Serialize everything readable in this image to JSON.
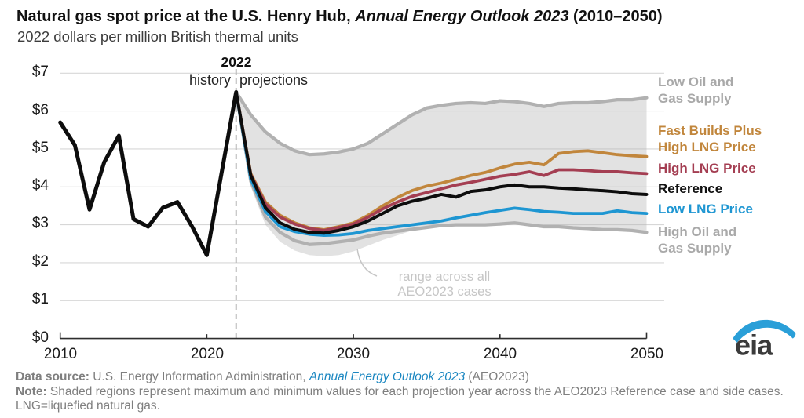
{
  "header": {
    "title_prefix": "Natural gas spot price at the U.S. Henry Hub, ",
    "title_italic": "Annual Energy Outlook 2023",
    "title_suffix": " (2010–2050)",
    "subtitle": "2022 dollars per million British thermal units"
  },
  "chart_data": {
    "type": "line",
    "title": "Natural gas spot price at the U.S. Henry Hub, Annual Energy Outlook 2023 (2010–2050)",
    "units": "2022 dollars per million British thermal units",
    "xlim": [
      2010,
      2050
    ],
    "ylim": [
      0,
      7
    ],
    "grid": "horizontal",
    "legend_position": "right",
    "x_tick_display": [
      "2010",
      "2020",
      "2030",
      "2040",
      "2050"
    ],
    "y_tick_labels": [
      "$0",
      "$1",
      "$2",
      "$3",
      "$4",
      "$5",
      "$6",
      "$7"
    ],
    "divider": {
      "year": 2022,
      "label": "2022",
      "left": "history",
      "right": "projections"
    },
    "callout": "range across all\nAEO2023 cases",
    "history": {
      "name": "history",
      "color": "#0d0d0d",
      "width": 5,
      "start_year": 2010,
      "values": [
        5.7,
        5.1,
        3.4,
        4.65,
        5.35,
        3.15,
        2.95,
        3.45,
        3.6,
        2.95,
        2.2,
        4.35,
        6.5
      ]
    },
    "band": {
      "name": "range across all AEO2023 cases",
      "fill": "#b4b4b4",
      "opacity": 0.38,
      "start_year": 2022,
      "upper": [
        6.5,
        5.9,
        5.45,
        5.15,
        4.95,
        4.85,
        4.87,
        4.92,
        5.0,
        5.15,
        5.4,
        5.65,
        5.9,
        6.08,
        6.15,
        6.2,
        6.22,
        6.2,
        6.27,
        6.25,
        6.2,
        6.12,
        6.2,
        6.22,
        6.22,
        6.25,
        6.3,
        6.3,
        6.35
      ],
      "lower": [
        6.5,
        4.0,
        3.0,
        2.55,
        2.32,
        2.2,
        2.17,
        2.2,
        2.3,
        2.45,
        2.6,
        2.72,
        2.85,
        2.93,
        2.98,
        3.0,
        3.0,
        3.0,
        3.02,
        3.05,
        3.0,
        2.95,
        2.95,
        2.92,
        2.9,
        2.87,
        2.87,
        2.85,
        2.8
      ]
    },
    "series": [
      {
        "name": "Low Oil and Gas Supply",
        "color": "#b1b1b1",
        "width": 4.2,
        "start_year": 2022,
        "values": [
          6.5,
          5.9,
          5.45,
          5.15,
          4.95,
          4.85,
          4.87,
          4.92,
          5.0,
          5.15,
          5.4,
          5.65,
          5.9,
          6.08,
          6.15,
          6.2,
          6.22,
          6.2,
          6.27,
          6.25,
          6.2,
          6.12,
          6.2,
          6.22,
          6.22,
          6.25,
          6.3,
          6.3,
          6.35
        ]
      },
      {
        "name": "High Oil and Gas Supply",
        "color": "#b1b1b1",
        "width": 4.2,
        "start_year": 2022,
        "values": [
          6.5,
          4.15,
          3.2,
          2.8,
          2.58,
          2.48,
          2.5,
          2.55,
          2.6,
          2.7,
          2.78,
          2.83,
          2.88,
          2.93,
          2.98,
          3.0,
          3.0,
          3.0,
          3.02,
          3.05,
          3.0,
          2.95,
          2.95,
          2.92,
          2.9,
          2.87,
          2.87,
          2.85,
          2.8
        ]
      },
      {
        "name": "Fast Builds Plus High LNG Price",
        "color": "#c1863c",
        "width": 3.8,
        "start_year": 2022,
        "values": [
          6.5,
          4.35,
          3.6,
          3.25,
          3.05,
          2.92,
          2.87,
          2.95,
          3.05,
          3.25,
          3.5,
          3.72,
          3.9,
          4.02,
          4.1,
          4.2,
          4.3,
          4.38,
          4.5,
          4.6,
          4.65,
          4.58,
          4.88,
          4.93,
          4.95,
          4.9,
          4.85,
          4.82,
          4.8
        ]
      },
      {
        "name": "High LNG Price",
        "color": "#a43e52",
        "width": 3.8,
        "start_year": 2022,
        "values": [
          6.5,
          4.32,
          3.55,
          3.2,
          3.02,
          2.9,
          2.85,
          2.93,
          3.02,
          3.2,
          3.42,
          3.6,
          3.75,
          3.85,
          3.95,
          4.05,
          4.12,
          4.2,
          4.28,
          4.33,
          4.4,
          4.3,
          4.45,
          4.45,
          4.43,
          4.4,
          4.4,
          4.37,
          4.35
        ]
      },
      {
        "name": "Low LNG Price",
        "color": "#1e96d2",
        "width": 3.8,
        "start_year": 2022,
        "values": [
          6.5,
          4.2,
          3.35,
          2.95,
          2.82,
          2.75,
          2.72,
          2.73,
          2.77,
          2.85,
          2.9,
          2.95,
          3.0,
          3.05,
          3.1,
          3.18,
          3.25,
          3.32,
          3.38,
          3.44,
          3.4,
          3.35,
          3.33,
          3.3,
          3.3,
          3.3,
          3.37,
          3.32,
          3.3
        ]
      },
      {
        "name": "Reference",
        "color": "#0d0d0d",
        "width": 4,
        "start_year": 2022,
        "values": [
          6.5,
          4.3,
          3.45,
          3.05,
          2.88,
          2.8,
          2.78,
          2.85,
          2.95,
          3.1,
          3.3,
          3.5,
          3.62,
          3.7,
          3.8,
          3.73,
          3.88,
          3.92,
          4.0,
          4.05,
          4.0,
          4.0,
          3.97,
          3.95,
          3.92,
          3.9,
          3.87,
          3.82,
          3.8
        ]
      }
    ]
  },
  "legend": {
    "items": [
      {
        "label": "Low Oil and\nGas Supply",
        "color": "#a9a9a9"
      },
      {
        "label": "Fast Builds Plus\nHigh LNG Price",
        "color": "#c1863c"
      },
      {
        "label": "High LNG Price",
        "color": "#a43e52"
      },
      {
        "label": "Reference",
        "color": "#111111"
      },
      {
        "label": "Low LNG Price",
        "color": "#1e96d2"
      },
      {
        "label": "High Oil and\nGas Supply",
        "color": "#a9a9a9"
      }
    ]
  },
  "footer": {
    "data_source_label": "Data source: ",
    "data_source_text": "U.S. Energy Information Administration, ",
    "data_source_link": "Annual Energy Outlook 2023",
    "data_source_tail": " (AEO2023)",
    "note_label": "Note: ",
    "note_text": "Shaded regions represent maximum and minimum values for each projection year across the AEO2023 Reference case and side cases. LNG=liquefied natural gas."
  },
  "logo": {
    "text": "eia",
    "accent_color": "#2a9fd8",
    "text_color": "#3b3b3b"
  }
}
